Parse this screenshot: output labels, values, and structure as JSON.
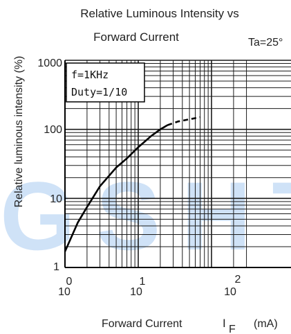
{
  "chart_data": {
    "type": "line",
    "title_line1": "Relative Luminous Intensity vs",
    "title_line2": "Forward Current",
    "temperature_note": "Ta=25°",
    "xlabel": "Forward Current",
    "xlabel_symbol": "I",
    "xlabel_subscript": "F",
    "xlabel_unit": "(mA)",
    "ylabel": "Relative luminous intensity (%)",
    "x_scale": "log",
    "y_scale": "log",
    "xlim": [
      1,
      300
    ],
    "ylim": [
      1,
      1000
    ],
    "x_ticks": [
      {
        "base": "10",
        "exp": "0"
      },
      {
        "base": "10",
        "exp": "1"
      },
      {
        "base": "10",
        "exp": "2"
      }
    ],
    "y_ticks": [
      "1000",
      "100",
      "10",
      "1"
    ],
    "grid": true,
    "legend_box": [
      "f=1KHz",
      "Duty=1/10"
    ],
    "series": [
      {
        "style": "solid",
        "x": [
          1,
          1.5,
          2,
          3,
          5,
          7,
          10,
          15,
          20,
          25
        ],
        "y": [
          1.7,
          4.5,
          7.5,
          15,
          28,
          38,
          55,
          80,
          100,
          115
        ]
      },
      {
        "style": "dashed",
        "x": [
          25,
          35,
          50,
          70
        ],
        "y": [
          115,
          130,
          140,
          150
        ]
      }
    ],
    "watermark": "GSHT",
    "colors": {
      "line": "#000000",
      "grid": "#1a1a1a",
      "watermark": "#cfe2f7"
    }
  }
}
